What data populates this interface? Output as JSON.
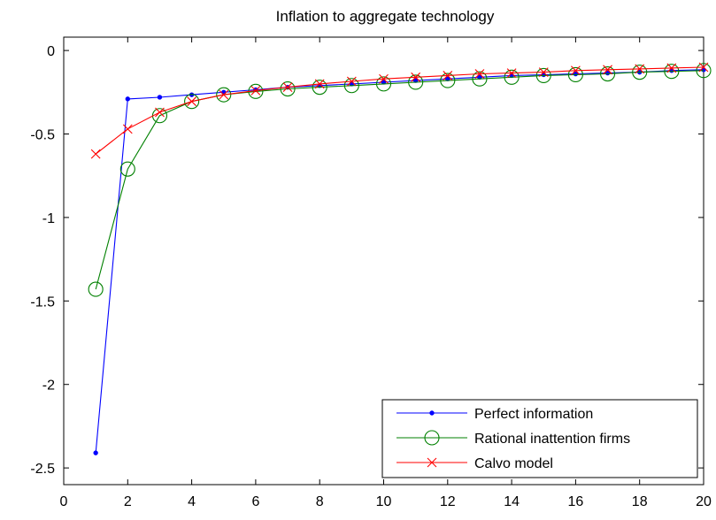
{
  "chart_data": {
    "type": "line",
    "title": "Inflation to aggregate technology",
    "xlabel": "",
    "ylabel": "",
    "xlim": [
      0,
      20
    ],
    "ylim": [
      -2.6,
      0.08
    ],
    "xticks": [
      0,
      2,
      4,
      6,
      8,
      10,
      12,
      14,
      16,
      18,
      20
    ],
    "yticks": [
      0,
      -0.5,
      -1,
      -1.5,
      -2,
      -2.5
    ],
    "ytick_labels": [
      "0",
      "-0.5",
      "-1",
      "-1.5",
      "-2",
      "-2.5"
    ],
    "grid": false,
    "legend_position": "bottom-right",
    "x": [
      1,
      2,
      3,
      4,
      5,
      6,
      7,
      8,
      9,
      10,
      11,
      12,
      13,
      14,
      15,
      16,
      17,
      18,
      19,
      20
    ],
    "series": [
      {
        "name": "Perfect information",
        "color": "#0000ff",
        "marker": "dot",
        "values": [
          -2.41,
          -0.29,
          -0.28,
          -0.265,
          -0.25,
          -0.235,
          -0.22,
          -0.21,
          -0.2,
          -0.19,
          -0.18,
          -0.17,
          -0.16,
          -0.15,
          -0.145,
          -0.14,
          -0.135,
          -0.13,
          -0.12,
          -0.115
        ]
      },
      {
        "name": "Rational inattention firms",
        "color": "#008000",
        "marker": "circle",
        "values": [
          -1.43,
          -0.71,
          -0.39,
          -0.305,
          -0.265,
          -0.245,
          -0.23,
          -0.22,
          -0.21,
          -0.2,
          -0.19,
          -0.18,
          -0.17,
          -0.16,
          -0.15,
          -0.145,
          -0.14,
          -0.13,
          -0.125,
          -0.12
        ]
      },
      {
        "name": "Calvo model",
        "color": "#ff0000",
        "marker": "x",
        "values": [
          -0.62,
          -0.47,
          -0.37,
          -0.305,
          -0.265,
          -0.24,
          -0.22,
          -0.2,
          -0.185,
          -0.17,
          -0.16,
          -0.15,
          -0.14,
          -0.135,
          -0.13,
          -0.12,
          -0.115,
          -0.11,
          -0.105,
          -0.1
        ]
      }
    ]
  }
}
